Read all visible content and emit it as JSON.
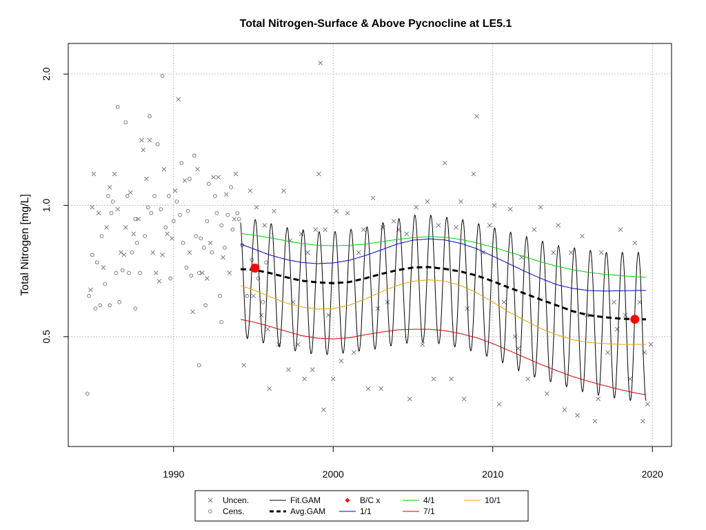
{
  "chart_data": {
    "type": "scatter",
    "title": "Total Nitrogen-Surface & Above Pycnocline at LE5.1",
    "xlabel": "",
    "ylabel": "Total Nitrogen [mg/L]",
    "xlim": [
      1983.4,
      2021.2
    ],
    "ylim": [
      0.28,
      2.35
    ],
    "y_scale": "log",
    "x_ticks": [
      1990,
      2000,
      2010,
      2020
    ],
    "y_ticks": [
      0.5,
      1.0,
      2.0
    ],
    "x_tick_labels": [
      "1990",
      "2000",
      "2010",
      "2020"
    ],
    "y_tick_labels": [
      "0.5",
      "1.0",
      "2.0"
    ],
    "grid": true,
    "legend_position": "bottom-center",
    "legend": [
      {
        "label": "Uncen.",
        "symbol": "x",
        "color": "#6b6b80"
      },
      {
        "label": "Cens.",
        "symbol": "circle",
        "color": "#6b6b80"
      },
      {
        "label": "Fit.GAM",
        "symbol": "line",
        "color": "#000000"
      },
      {
        "label": "Avg.GAM",
        "symbol": "dashed-thick",
        "color": "#000000"
      },
      {
        "label": "B/C x",
        "symbol": "diamond",
        "color": "#ff0000"
      },
      {
        "label": "1/1",
        "symbol": "line",
        "color": "#0000cc"
      },
      {
        "label": "4/1",
        "symbol": "line",
        "color": "#00cc00"
      },
      {
        "label": "7/1",
        "symbol": "line",
        "color": "#cc0000"
      },
      {
        "label": "10/1",
        "symbol": "line",
        "color": "#e69f00"
      }
    ],
    "colors": {
      "points": "#6b6b80",
      "fit": "#000000",
      "avg": "#000000",
      "bc": "#ff0000",
      "jan": "#0000cc",
      "apr": "#00cc00",
      "jul": "#cc0000",
      "oct": "#e69f00",
      "grid": "#c0c0c0"
    },
    "series_avg": {
      "name": "Avg.GAM",
      "x": [
        1994.2,
        1995,
        1996,
        1997,
        1998,
        1999,
        2000,
        2001,
        2002,
        2003,
        2004,
        2005,
        2006,
        2007,
        2008,
        2009,
        2010,
        2011,
        2012,
        2013,
        2014,
        2015,
        2016,
        2017,
        2018,
        2019,
        2019.6
      ],
      "y": [
        0.714,
        0.712,
        0.7,
        0.685,
        0.672,
        0.666,
        0.663,
        0.667,
        0.68,
        0.696,
        0.71,
        0.72,
        0.722,
        0.715,
        0.705,
        0.69,
        0.67,
        0.648,
        0.628,
        0.608,
        0.59,
        0.572,
        0.56,
        0.554,
        0.55,
        0.548,
        0.548
      ]
    },
    "series_jan": {
      "name": "1/1",
      "x": [
        1994.2,
        1995,
        1996,
        1997,
        1998,
        1999,
        2000,
        2001,
        2002,
        2003,
        2004,
        2005,
        2006,
        2007,
        2008,
        2009,
        2010,
        2011,
        2012,
        2013,
        2014,
        2015,
        2016,
        2017,
        2018,
        2019,
        2019.6
      ],
      "y": [
        0.815,
        0.795,
        0.77,
        0.752,
        0.74,
        0.735,
        0.738,
        0.748,
        0.767,
        0.79,
        0.815,
        0.832,
        0.838,
        0.833,
        0.818,
        0.795,
        0.765,
        0.735,
        0.706,
        0.68,
        0.658,
        0.645,
        0.638,
        0.636,
        0.637,
        0.638,
        0.638
      ]
    },
    "series_apr": {
      "name": "4/1",
      "x": [
        1994.2,
        1995,
        1996,
        1997,
        1998,
        1999,
        2000,
        2001,
        2002,
        2003,
        2004,
        2005,
        2006,
        2007,
        2008,
        2009,
        2010,
        2011,
        2012,
        2013,
        2014,
        2015,
        2016,
        2017,
        2018,
        2019,
        2019.6
      ],
      "y": [
        0.862,
        0.855,
        0.843,
        0.83,
        0.818,
        0.81,
        0.808,
        0.81,
        0.815,
        0.825,
        0.835,
        0.843,
        0.848,
        0.845,
        0.835,
        0.82,
        0.802,
        0.782,
        0.762,
        0.742,
        0.725,
        0.712,
        0.702,
        0.695,
        0.69,
        0.686,
        0.684
      ]
    },
    "series_jul": {
      "name": "7/1",
      "x": [
        1994.2,
        1995,
        1996,
        1997,
        1998,
        1999,
        2000,
        2001,
        2002,
        2003,
        2004,
        2005,
        2006,
        2007,
        2008,
        2009,
        2010,
        2011,
        2012,
        2013,
        2014,
        2015,
        2016,
        2017,
        2018,
        2019,
        2019.6
      ],
      "y": [
        0.548,
        0.54,
        0.528,
        0.515,
        0.503,
        0.496,
        0.494,
        0.497,
        0.505,
        0.512,
        0.518,
        0.52,
        0.52,
        0.516,
        0.508,
        0.497,
        0.482,
        0.465,
        0.448,
        0.432,
        0.418,
        0.405,
        0.395,
        0.386,
        0.378,
        0.371,
        0.368
      ]
    },
    "series_oct": {
      "name": "10/1",
      "x": [
        1994.2,
        1995,
        1996,
        1997,
        1998,
        1999,
        2000,
        2001,
        2002,
        2003,
        2004,
        2005,
        2006,
        2007,
        2008,
        2009,
        2010,
        2011,
        2012,
        2013,
        2014,
        2015,
        2016,
        2017,
        2018,
        2019,
        2019.6
      ],
      "y": [
        0.655,
        0.64,
        0.618,
        0.598,
        0.585,
        0.578,
        0.58,
        0.59,
        0.61,
        0.633,
        0.655,
        0.67,
        0.675,
        0.67,
        0.655,
        0.63,
        0.6,
        0.57,
        0.545,
        0.522,
        0.505,
        0.492,
        0.485,
        0.482,
        0.48,
        0.48,
        0.48
      ]
    },
    "fit_gam": {
      "name": "Fit.GAM",
      "x_start": 1994.2,
      "x_end": 2019.6,
      "seasonal_peak_month_fraction": 0.12,
      "seasonal_trough_month_fraction": 0.55,
      "peak_y_by_year": [
        0.95,
        0.93,
        0.91,
        0.89,
        0.88,
        0.87,
        0.87,
        0.88,
        0.89,
        0.91,
        0.93,
        0.95,
        0.95,
        0.94,
        0.93,
        0.91,
        0.89,
        0.87,
        0.85,
        0.83,
        0.81,
        0.8,
        0.79,
        0.78,
        0.78,
        0.78,
        0.78
      ],
      "trough_y_by_year": [
        0.5,
        0.49,
        0.48,
        0.47,
        0.46,
        0.455,
        0.455,
        0.46,
        0.465,
        0.47,
        0.48,
        0.485,
        0.485,
        0.48,
        0.47,
        0.46,
        0.445,
        0.43,
        0.41,
        0.4,
        0.39,
        0.38,
        0.37,
        0.365,
        0.36,
        0.355,
        0.355
      ]
    },
    "bc_points": [
      {
        "x": 1995.1,
        "y": 0.718
      },
      {
        "x": 2018.9,
        "y": 0.548
      }
    ],
    "uncensored_points": [
      [
        1984.9,
        0.99
      ],
      [
        1985.0,
        1.18
      ],
      [
        1985.3,
        0.96
      ],
      [
        1985.6,
        0.72
      ],
      [
        1985.8,
        0.89
      ],
      [
        1986.0,
        1.1
      ],
      [
        1986.3,
        1.18
      ],
      [
        1986.5,
        0.98
      ],
      [
        1986.7,
        0.78
      ],
      [
        1987.0,
        0.89
      ],
      [
        1987.3,
        1.07
      ],
      [
        1987.5,
        0.86
      ],
      [
        1987.8,
        0.93
      ],
      [
        1988.0,
        1.41
      ],
      [
        1988.1,
        1.34
      ],
      [
        1988.3,
        1.15
      ],
      [
        1988.5,
        1.41
      ],
      [
        1988.7,
        0.78
      ],
      [
        1988.9,
        0.7
      ],
      [
        1989.1,
        0.67
      ],
      [
        1989.4,
        1.21
      ],
      [
        1989.6,
        0.86
      ],
      [
        1989.9,
        0.84
      ],
      [
        1990.1,
        1.08
      ],
      [
        1990.3,
        1.75
      ],
      [
        1990.7,
        1.14
      ],
      [
        1991.0,
        0.78
      ],
      [
        1991.2,
        0.57
      ],
      [
        1991.5,
        1.21
      ],
      [
        1991.8,
        0.7
      ],
      [
        1992.1,
        0.68
      ],
      [
        1992.3,
        0.82
      ],
      [
        1992.5,
        1.16
      ],
      [
        1992.8,
        1.16
      ],
      [
        1993.1,
        0.76
      ],
      [
        1993.3,
        1.06
      ],
      [
        1993.5,
        0.7
      ],
      [
        1993.8,
        0.93
      ],
      [
        1993.9,
        1.18
      ],
      [
        1994.4,
        0.43
      ],
      [
        1994.8,
        1.08
      ],
      [
        1995.0,
        0.62
      ],
      [
        1995.2,
        0.99
      ],
      [
        1995.5,
        0.56
      ],
      [
        1995.7,
        0.9
      ],
      [
        1996.0,
        0.38
      ],
      [
        1996.3,
        0.97
      ],
      [
        1996.6,
        0.48
      ],
      [
        1996.9,
        1.08
      ],
      [
        1997.2,
        0.42
      ],
      [
        1997.5,
        0.6
      ],
      [
        1997.8,
        0.48
      ],
      [
        1998.0,
        0.86
      ],
      [
        1998.2,
        0.4
      ],
      [
        1998.4,
        0.78
      ],
      [
        1998.7,
        0.42
      ],
      [
        1998.9,
        0.88
      ],
      [
        1999.1,
        1.18
      ],
      [
        1999.4,
        0.34
      ],
      [
        1999.5,
        0.88
      ],
      [
        1999.7,
        0.56
      ],
      [
        2000.0,
        0.4
      ],
      [
        2000.2,
        0.97
      ],
      [
        2000.5,
        0.44
      ],
      [
        2000.9,
        0.96
      ],
      [
        2001.3,
        0.46
      ],
      [
        2001.6,
        0.78
      ],
      [
        2001.9,
        0.88
      ],
      [
        2002.2,
        0.38
      ],
      [
        2002.5,
        1.04
      ],
      [
        2002.8,
        0.58
      ],
      [
        2003.1,
        0.89
      ],
      [
        2003.4,
        0.6
      ],
      [
        2003.8,
        0.92
      ],
      [
        2004.1,
        0.88
      ],
      [
        2004.6,
        0.86
      ],
      [
        2004.8,
        0.36
      ],
      [
        2005.2,
        0.99
      ],
      [
        2005.6,
        0.48
      ],
      [
        2005.9,
        1.02
      ],
      [
        2006.3,
        0.4
      ],
      [
        2006.6,
        0.9
      ],
      [
        2007.0,
        1.25
      ],
      [
        2007.4,
        0.4
      ],
      [
        2007.7,
        0.89
      ],
      [
        2008.0,
        1.02
      ],
      [
        2008.4,
        0.58
      ],
      [
        2008.8,
        1.18
      ],
      [
        2009.0,
        1.6
      ],
      [
        2009.4,
        0.78
      ],
      [
        2009.8,
        0.9
      ],
      [
        2010.1,
        1.0
      ],
      [
        2010.4,
        0.35
      ],
      [
        2010.7,
        0.6
      ],
      [
        2011.1,
        0.98
      ],
      [
        2011.4,
        0.5
      ],
      [
        2011.8,
        0.76
      ],
      [
        2012.2,
        0.4
      ],
      [
        2012.6,
        0.88
      ],
      [
        2013.0,
        0.99
      ],
      [
        2013.4,
        0.37
      ],
      [
        2013.8,
        0.78
      ],
      [
        2014.1,
        0.9
      ],
      [
        2014.5,
        0.34
      ],
      [
        2014.9,
        0.78
      ],
      [
        2015.3,
        0.33
      ],
      [
        2015.6,
        0.85
      ],
      [
        2015.9,
        0.56
      ],
      [
        2016.4,
        0.32
      ],
      [
        2016.8,
        0.78
      ],
      [
        2017.2,
        0.46
      ],
      [
        2017.6,
        0.6
      ],
      [
        2018.0,
        0.88
      ],
      [
        2018.3,
        0.56
      ],
      [
        2018.6,
        0.4
      ],
      [
        2018.9,
        0.82
      ],
      [
        2019.2,
        0.6
      ],
      [
        2019.5,
        0.46
      ],
      [
        2019.7,
        0.35
      ],
      [
        2019.9,
        0.48
      ],
      [
        1984.8,
        0.64
      ],
      [
        1986.9,
        0.77
      ],
      [
        1989.3,
        0.77
      ],
      [
        1995.9,
        0.52
      ],
      [
        1997.3,
        0.83
      ],
      [
        1999.2,
        2.12
      ],
      [
        2003.0,
        0.38
      ],
      [
        2008.2,
        0.36
      ],
      [
        2011.6,
        0.47
      ],
      [
        2016.6,
        0.36
      ],
      [
        2017.8,
        0.52
      ],
      [
        2019.4,
        0.32
      ]
    ],
    "censored_points": [
      [
        1984.6,
        0.37
      ],
      [
        1984.7,
        0.62
      ],
      [
        1984.9,
        0.77
      ],
      [
        1985.1,
        0.58
      ],
      [
        1985.2,
        0.74
      ],
      [
        1985.4,
        0.59
      ],
      [
        1985.5,
        0.85
      ],
      [
        1985.7,
        0.66
      ],
      [
        1985.9,
        1.05
      ],
      [
        1986.1,
        0.96
      ],
      [
        1986.2,
        1.02
      ],
      [
        1986.4,
        0.7
      ],
      [
        1986.6,
        0.6
      ],
      [
        1986.8,
        0.71
      ],
      [
        1987.1,
        1.05
      ],
      [
        1987.2,
        0.7
      ],
      [
        1987.4,
        0.78
      ],
      [
        1987.6,
        0.93
      ],
      [
        1987.7,
        0.82
      ],
      [
        1987.9,
        0.7
      ],
      [
        1988.2,
        0.85
      ],
      [
        1988.4,
        0.99
      ],
      [
        1988.6,
        0.96
      ],
      [
        1988.8,
        1.05
      ],
      [
        1989.0,
        1.38
      ],
      [
        1989.2,
        0.98
      ],
      [
        1989.5,
        0.89
      ],
      [
        1989.7,
        1.05
      ],
      [
        1989.8,
        0.68
      ],
      [
        1990.0,
        0.92
      ],
      [
        1990.2,
        1.02
      ],
      [
        1990.4,
        0.95
      ],
      [
        1990.6,
        0.82
      ],
      [
        1990.8,
        0.72
      ],
      [
        1990.9,
        0.97
      ],
      [
        1991.1,
        0.69
      ],
      [
        1991.3,
        1.3
      ],
      [
        1991.4,
        0.85
      ],
      [
        1991.6,
        0.7
      ],
      [
        1991.7,
        0.84
      ],
      [
        1991.9,
        0.8
      ],
      [
        1992.0,
        0.59
      ],
      [
        1992.2,
        1.12
      ],
      [
        1992.4,
        0.78
      ],
      [
        1992.6,
        1.05
      ],
      [
        1992.7,
        0.96
      ],
      [
        1992.9,
        0.62
      ],
      [
        1993.0,
        0.9
      ],
      [
        1993.2,
        0.8
      ],
      [
        1993.4,
        0.95
      ],
      [
        1993.6,
        1.1
      ],
      [
        1993.7,
        0.88
      ],
      [
        1994.0,
        0.96
      ],
      [
        1994.3,
        0.81
      ],
      [
        1994.6,
        0.62
      ],
      [
        1994.9,
        0.75
      ],
      [
        1995.3,
        0.68
      ],
      [
        1995.6,
        0.6
      ],
      [
        1995.8,
        0.74
      ],
      [
        1986.5,
        1.68
      ],
      [
        1987.0,
        1.55
      ],
      [
        1988.5,
        1.6
      ],
      [
        1989.3,
        1.98
      ],
      [
        1990.5,
        1.25
      ],
      [
        1991.0,
        1.15
      ],
      [
        1991.6,
        0.43
      ],
      [
        1992.1,
        0.92
      ],
      [
        1993.0,
        0.54
      ],
      [
        1994.1,
        0.93
      ],
      [
        1986.0,
        0.59
      ],
      [
        1987.6,
        0.58
      ]
    ]
  }
}
